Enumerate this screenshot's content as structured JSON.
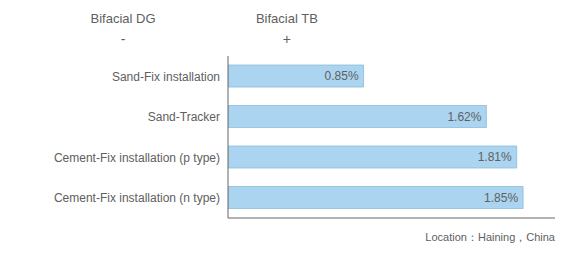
{
  "chart_data": {
    "type": "bar",
    "orientation": "horizontal",
    "categories": [
      "Sand-Fix installation",
      "Sand-Tracker",
      "Cement-Fix installation (p type)",
      "Cement-Fix installation (n type)"
    ],
    "values": [
      0.85,
      1.62,
      1.81,
      1.85
    ],
    "value_labels": [
      "0.85%",
      "1.62%",
      "1.81%",
      "1.85%"
    ],
    "data_labels": true,
    "color": "#aad4f0",
    "xlim": [
      0,
      2.05
    ],
    "tick_labels": "y",
    "grid": false,
    "annotations": [
      "Bifacial DG",
      "-",
      "Bifacial TB",
      "+",
      "Location：Haining，China"
    ]
  }
}
